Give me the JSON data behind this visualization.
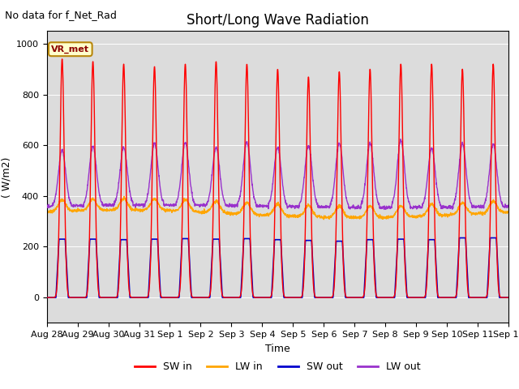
{
  "title": "Short/Long Wave Radiation",
  "xlabel": "Time",
  "ylabel": "( W/m2)",
  "ylim": [
    -100,
    1050
  ],
  "note": "No data for f_Net_Rad",
  "station_label": "VR_met",
  "xtick_labels": [
    "Aug 28",
    "Aug 29",
    "Aug 30",
    "Aug 31",
    "Sep 1",
    "Sep 2",
    "Sep 3",
    "Sep 4",
    "Sep 5",
    "Sep 6",
    "Sep 7",
    "Sep 8",
    "Sep 9",
    "Sep 10",
    "Sep 11",
    "Sep 12"
  ],
  "xtick_positions": [
    0,
    1,
    2,
    3,
    4,
    5,
    6,
    7,
    8,
    9,
    10,
    11,
    12,
    13,
    14,
    15
  ],
  "legend": [
    {
      "label": "SW in",
      "color": "#ff0000"
    },
    {
      "label": "LW in",
      "color": "#ffa500"
    },
    {
      "label": "SW out",
      "color": "#0000cd"
    },
    {
      "label": "LW out",
      "color": "#9932cc"
    }
  ],
  "bg_color": "#dcdcdc",
  "title_fontsize": 12,
  "note_fontsize": 9,
  "axis_fontsize": 9,
  "tick_fontsize": 8
}
